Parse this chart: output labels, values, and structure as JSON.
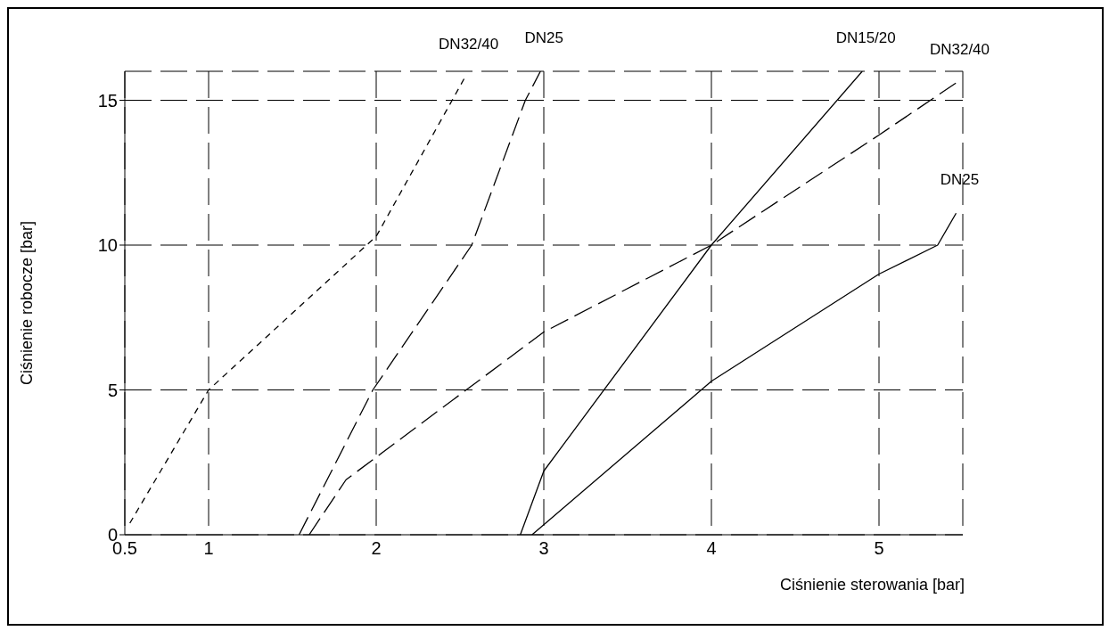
{
  "chart_data": {
    "type": "line",
    "xlabel": "Ciśnienie sterowania [bar]",
    "ylabel": "Ciśnienie robocze [bar]",
    "xlim": [
      0.5,
      5.5
    ],
    "ylim": [
      0,
      16
    ],
    "xticks": [
      0.5,
      1,
      2,
      3,
      4,
      5
    ],
    "yticks": [
      0,
      5,
      10,
      15
    ],
    "grid": true,
    "marker": "none",
    "series": [
      {
        "name": "DN32/40",
        "color": "#000000",
        "line_style": "dotted",
        "x": [
          0.53,
          1,
          2,
          2.53
        ],
        "values": [
          0.4,
          5,
          10.3,
          15.8
        ]
      },
      {
        "name": "DN25",
        "color": "#000000",
        "line_style": "dashed",
        "x": [
          1.54,
          1.98,
          2.57,
          2.89,
          2.98
        ],
        "values": [
          0,
          5,
          10,
          15,
          16
        ]
      },
      {
        "name": "DN15/20",
        "color": "#000000",
        "line_style": "solid",
        "x": [
          2.86,
          3,
          4,
          4.9
        ],
        "values": [
          0,
          2.2,
          10,
          16
        ]
      },
      {
        "name": "DN32/40",
        "color": "#000000",
        "line_style": "dashed",
        "x": [
          1.6,
          1.82,
          3,
          4,
          5,
          5.46
        ],
        "values": [
          0,
          1.9,
          7,
          10,
          13.8,
          15.6
        ]
      },
      {
        "name": "DN25",
        "color": "#000000",
        "line_style": "solid",
        "x": [
          2.93,
          4,
          5,
          5.35,
          5.46
        ],
        "values": [
          0,
          5.3,
          9,
          10,
          11.1
        ]
      }
    ]
  }
}
